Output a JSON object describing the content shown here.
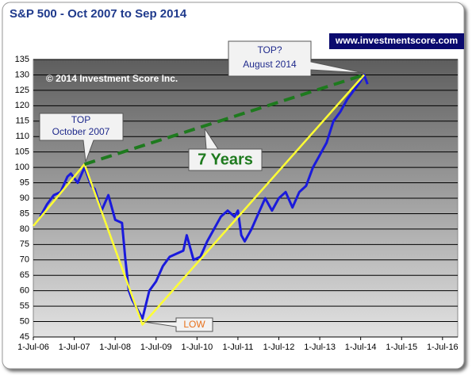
{
  "chart_data": {
    "type": "line",
    "title": "S&P 500  - Oct 2007 to Sep 2014",
    "copyright": "© 2014 Investment Score Inc.",
    "url": "www.investmentscore.com",
    "annotations": {
      "top_2007": [
        "TOP",
        "October 2007"
      ],
      "top_2014": [
        "TOP?",
        "August 2014"
      ],
      "low": "LOW",
      "span": "7 Years"
    },
    "xlim": [
      "2006-07-01",
      "2016-11-15"
    ],
    "xticks": [
      {
        "value": "2006-07-01",
        "label": "1-Jul-06"
      },
      {
        "value": "2007-07-01",
        "label": "1-Jul-07"
      },
      {
        "value": "2008-07-01",
        "label": "1-Jul-08"
      },
      {
        "value": "2009-07-01",
        "label": "1-Jul-09"
      },
      {
        "value": "2010-07-01",
        "label": "1-Jul-10"
      },
      {
        "value": "2011-07-01",
        "label": "1-Jul-11"
      },
      {
        "value": "2012-07-01",
        "label": "1-Jul-12"
      },
      {
        "value": "2013-07-01",
        "label": "1-Jul-13"
      },
      {
        "value": "2014-07-01",
        "label": "1-Jul-14"
      },
      {
        "value": "2015-07-01",
        "label": "1-Jul-15"
      },
      {
        "value": "2016-07-01",
        "label": "1-Jul-16"
      }
    ],
    "ylim": [
      45,
      135
    ],
    "yticks": [
      45,
      50,
      55,
      60,
      65,
      70,
      75,
      80,
      85,
      90,
      95,
      100,
      105,
      110,
      115,
      120,
      125,
      130,
      135
    ],
    "grid": true,
    "x": [
      "2006-09",
      "2006-11",
      "2007-01",
      "2007-03",
      "2007-05",
      "2007-06",
      "2007-08",
      "2007-10",
      "2007-12",
      "2008-01",
      "2008-03",
      "2008-05",
      "2008-07",
      "2008-09",
      "2008-10",
      "2008-11",
      "2008-12",
      "2009-01",
      "2009-03",
      "2009-05",
      "2009-07",
      "2009-09",
      "2009-11",
      "2010-01",
      "2010-03",
      "2010-04",
      "2010-06",
      "2010-08",
      "2010-10",
      "2010-12",
      "2011-02",
      "2011-04",
      "2011-06",
      "2011-07",
      "2011-08",
      "2011-09",
      "2011-11",
      "2012-01",
      "2012-03",
      "2012-05",
      "2012-07",
      "2012-09",
      "2012-11",
      "2013-01",
      "2013-03",
      "2013-05",
      "2013-07",
      "2013-09",
      "2013-11",
      "2014-01",
      "2014-03",
      "2014-05",
      "2014-07",
      "2014-08",
      "2014-09"
    ],
    "values": [
      84,
      88,
      91,
      92,
      97,
      98,
      95,
      100,
      94,
      93,
      86,
      91,
      83,
      82,
      70,
      60,
      57,
      55,
      51,
      60,
      63,
      68,
      71,
      72,
      73,
      78,
      70,
      71,
      76,
      80,
      84,
      86,
      84,
      86,
      78,
      76,
      80,
      85,
      90,
      86,
      90,
      92,
      87,
      92,
      94,
      100,
      104,
      108,
      115,
      118,
      122,
      125,
      128,
      130,
      127
    ],
    "color": "#1a1adc",
    "trend_lines": [
      {
        "x": [
          "2006-07",
          "2007-10",
          "2009-03",
          "2014-08"
        ],
        "values": [
          81,
          101,
          49,
          130
        ],
        "color": "#ffff33",
        "style": "solid"
      },
      {
        "x": [
          "2007-10",
          "2014-08"
        ],
        "values": [
          101,
          130
        ],
        "color": "#1e7a1e",
        "style": "dashed"
      }
    ]
  }
}
